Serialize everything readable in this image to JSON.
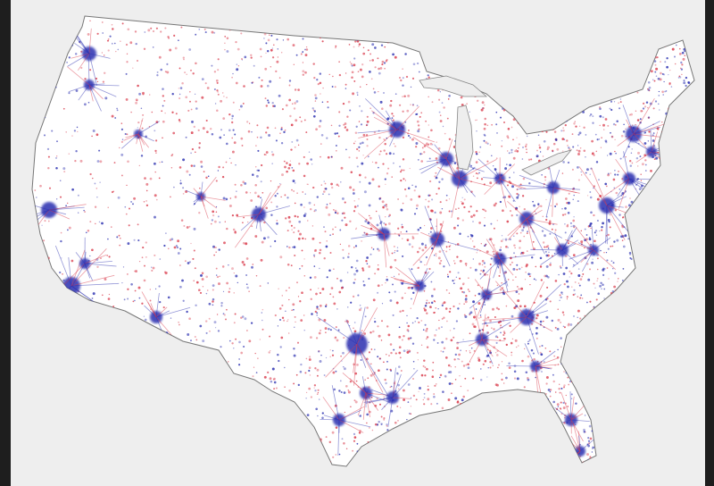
{
  "map": {
    "type": "dot-density",
    "region": "contiguous-united-states",
    "colors": {
      "background": "#eeeeee",
      "land": "#ffffff",
      "outline": "#777777",
      "democratic_dots": "#2a2fb0",
      "republican_dots": "#d93a4a",
      "frame": "#1e1e1e"
    }
  }
}
